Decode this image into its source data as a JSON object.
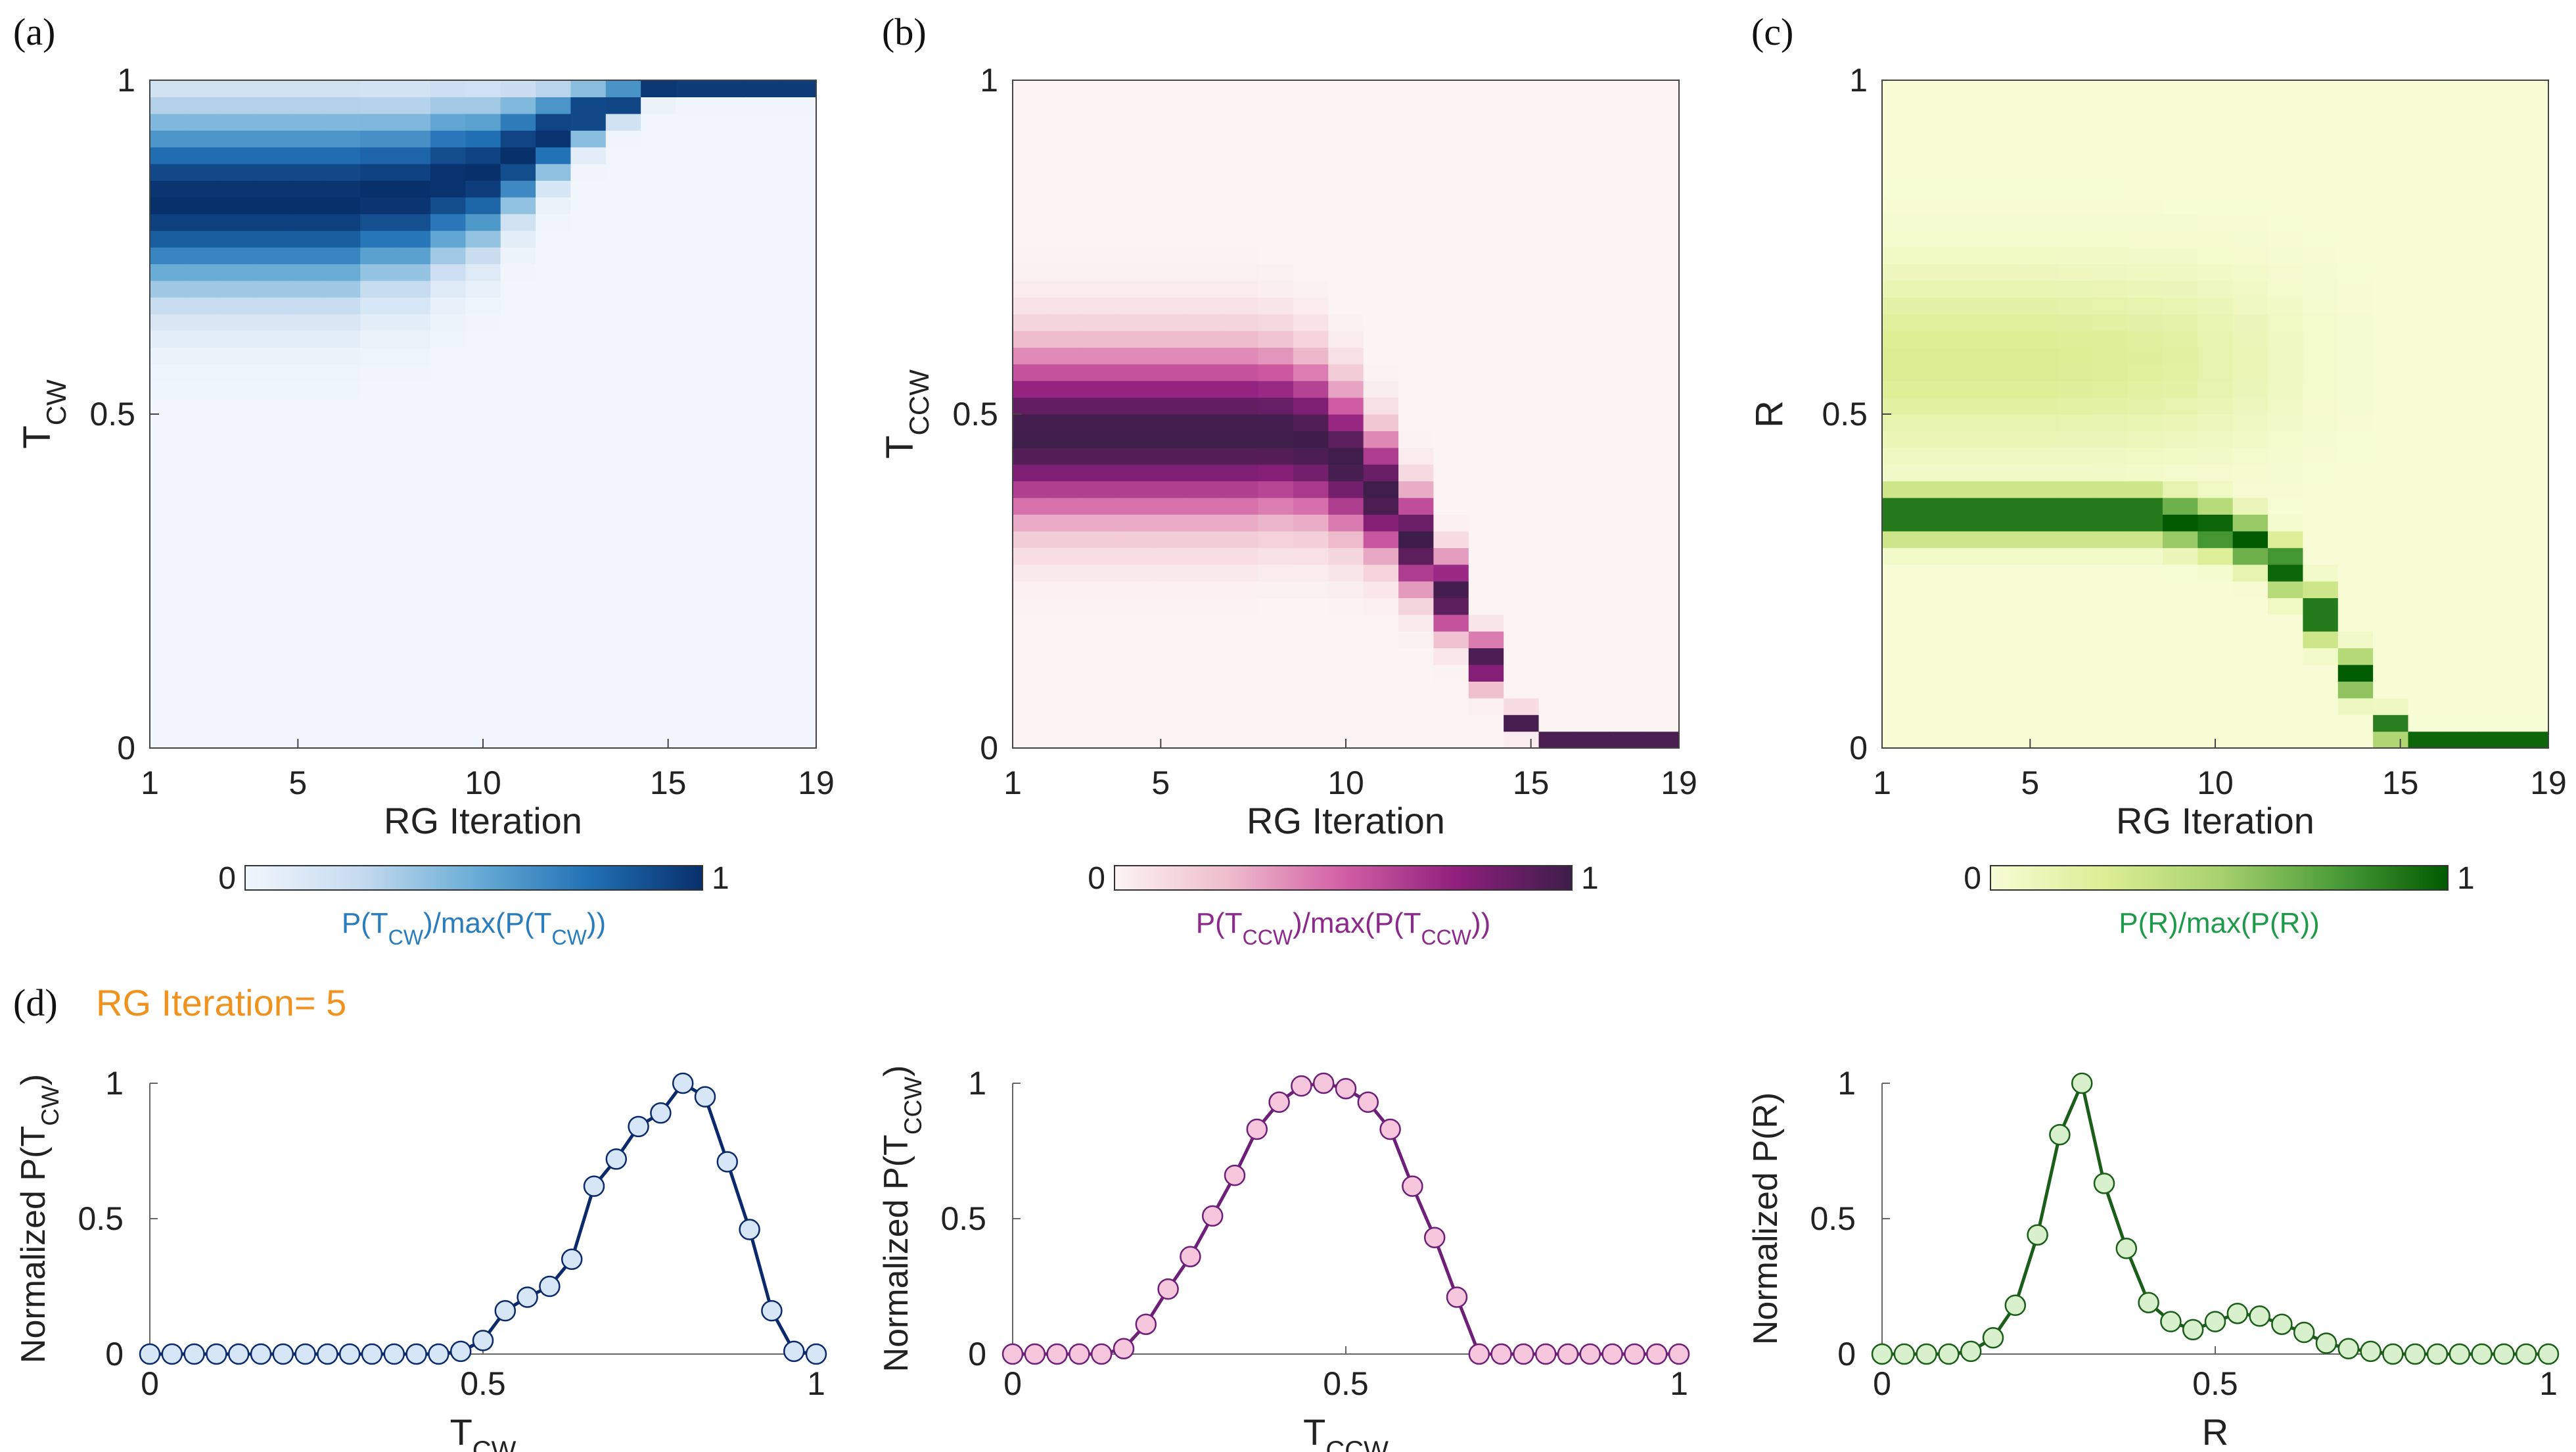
{
  "figure": {
    "panel_labels": [
      "(a)",
      "(b)",
      "(c)",
      "(d)"
    ],
    "d_annotation": "RG Iteration= 5",
    "d_annotation_color": "#f0921e"
  },
  "chart_data": [
    {
      "type": "heatmap",
      "panel": "(a)",
      "xlabel": "RG Iteration",
      "ylabel_main": "T",
      "ylabel_sub": "CW",
      "xticks": [
        "1",
        "5",
        "10",
        "15",
        "19"
      ],
      "yticks": [
        "0",
        "0.5",
        "1"
      ],
      "x_range": [
        1,
        19
      ],
      "ylim": [
        0,
        1
      ],
      "n_bins_y": 40,
      "colorbar": {
        "min_label": "0",
        "max_label": "1",
        "label": "P(T_CW)/max(P(T_CW))",
        "label_color": "#2a7dbd",
        "colors": [
          "#f1f6fc",
          "#c6dbef",
          "#6aaed6",
          "#2171b5",
          "#08306b"
        ]
      },
      "peak_center": [
        0.82,
        0.82,
        0.82,
        0.82,
        0.82,
        0.82,
        0.83,
        0.83,
        0.85,
        0.86,
        0.89,
        0.92,
        0.95,
        0.97,
        0.99,
        0.99,
        0.99,
        0.99,
        0.99
      ],
      "peak_width": [
        0.13,
        0.13,
        0.13,
        0.13,
        0.13,
        0.13,
        0.12,
        0.12,
        0.11,
        0.1,
        0.08,
        0.06,
        0.04,
        0.025,
        0.015,
        0.012,
        0.012,
        0.012,
        0.012
      ]
    },
    {
      "type": "heatmap",
      "panel": "(b)",
      "xlabel": "RG Iteration",
      "ylabel_main": "T",
      "ylabel_sub": "CCW",
      "xticks": [
        "1",
        "5",
        "10",
        "15",
        "19"
      ],
      "yticks": [
        "0",
        "0.5",
        "1"
      ],
      "x_range": [
        1,
        19
      ],
      "ylim": [
        0,
        1
      ],
      "n_bins_y": 40,
      "colorbar": {
        "min_label": "0",
        "max_label": "1",
        "label": "P(T_CCW)/max(P(T_CCW))",
        "label_color": "#8b2a8b",
        "colors": [
          "#fcf4f4",
          "#eebccc",
          "#d25fa4",
          "#8e1f7c",
          "#3d1e4a"
        ]
      },
      "peak_center": [
        0.47,
        0.47,
        0.47,
        0.47,
        0.47,
        0.47,
        0.47,
        0.47,
        0.46,
        0.43,
        0.38,
        0.31,
        0.23,
        0.13,
        0.04,
        0.01,
        0.01,
        0.01,
        0.01
      ],
      "peak_width": [
        0.12,
        0.12,
        0.12,
        0.12,
        0.12,
        0.12,
        0.12,
        0.115,
        0.11,
        0.1,
        0.085,
        0.07,
        0.055,
        0.035,
        0.015,
        0.012,
        0.012,
        0.012,
        0.012
      ]
    },
    {
      "type": "heatmap",
      "panel": "(c)",
      "xlabel": "RG Iteration",
      "ylabel_main": "R",
      "ylabel_sub": "",
      "xticks": [
        "1",
        "5",
        "10",
        "15",
        "19"
      ],
      "yticks": [
        "0",
        "0.5",
        "1"
      ],
      "x_range": [
        1,
        19
      ],
      "ylim": [
        0,
        1
      ],
      "n_bins_y": 40,
      "colorbar": {
        "min_label": "0",
        "max_label": "1",
        "label": "P(R)/max(P(R))",
        "label_color": "#1f9a4a",
        "colors": [
          "#f7fcd5",
          "#dcee94",
          "#a8d26e",
          "#4d9e3a",
          "#005a00"
        ]
      },
      "peak_center": [
        0.35,
        0.35,
        0.35,
        0.35,
        0.35,
        0.35,
        0.35,
        0.35,
        0.34,
        0.33,
        0.31,
        0.27,
        0.2,
        0.11,
        0.03,
        0.01,
        0.01,
        0.01,
        0.01
      ],
      "peak_width": [
        0.035,
        0.035,
        0.035,
        0.035,
        0.035,
        0.035,
        0.035,
        0.035,
        0.035,
        0.035,
        0.035,
        0.035,
        0.035,
        0.03,
        0.02,
        0.012,
        0.012,
        0.012,
        0.012
      ],
      "broad_center": 0.58,
      "broad_width": 0.13,
      "broad_amp": [
        0.26,
        0.26,
        0.26,
        0.26,
        0.26,
        0.25,
        0.24,
        0.22,
        0.2,
        0.16,
        0.12,
        0.08,
        0.04,
        0.02,
        0.0,
        0.0,
        0.0,
        0.0,
        0.0
      ]
    },
    {
      "type": "line",
      "panel": "(d) left",
      "xlabel_main": "T",
      "xlabel_sub": "CW",
      "ylabel_main": "Normalized P(T",
      "ylabel_sub": "CW",
      "ylabel_end": ")",
      "xticks": [
        "0",
        "0.5",
        "1"
      ],
      "yticks": [
        "0",
        "0.5",
        "1"
      ],
      "xlim": [
        0,
        1
      ],
      "ylim": [
        0,
        1
      ],
      "line_color": "#0b2a6b",
      "marker_color": "#d6e6f7",
      "x": [
        0.0,
        0.0333,
        0.0667,
        0.1,
        0.1333,
        0.1667,
        0.2,
        0.2333,
        0.2667,
        0.3,
        0.3333,
        0.3667,
        0.4,
        0.4333,
        0.4667,
        0.5,
        0.5333,
        0.5667,
        0.6,
        0.6333,
        0.6667,
        0.7,
        0.7333,
        0.7667,
        0.8,
        0.8333,
        0.8667,
        0.9,
        0.9333,
        0.9667,
        1.0
      ],
      "y": [
        0,
        0,
        0,
        0,
        0,
        0,
        0,
        0,
        0,
        0,
        0,
        0,
        0,
        0,
        0.01,
        0.05,
        0.16,
        0.21,
        0.25,
        0.35,
        0.62,
        0.72,
        0.84,
        0.89,
        1.0,
        0.95,
        0.71,
        0.46,
        0.16,
        0.01,
        0
      ]
    },
    {
      "type": "line",
      "panel": "(d) middle",
      "xlabel_main": "T",
      "xlabel_sub": "CCW",
      "ylabel_main": "Normalized P(T",
      "ylabel_sub": "CCW",
      "ylabel_end": ")",
      "xticks": [
        "0",
        "0.5",
        "1"
      ],
      "yticks": [
        "0",
        "0.5",
        "1"
      ],
      "xlim": [
        0,
        1
      ],
      "ylim": [
        0,
        1
      ],
      "line_color": "#6e1f78",
      "marker_color": "#f5c6dc",
      "x": [
        0.0,
        0.0333,
        0.0667,
        0.1,
        0.1333,
        0.1667,
        0.2,
        0.2333,
        0.2667,
        0.3,
        0.3333,
        0.3667,
        0.4,
        0.4333,
        0.4667,
        0.5,
        0.5333,
        0.5667,
        0.6,
        0.6333,
        0.6667,
        0.7,
        0.7333,
        0.7667,
        0.8,
        0.8333,
        0.8667,
        0.9,
        0.9333,
        0.9667,
        1.0
      ],
      "y": [
        0,
        0,
        0,
        0,
        0,
        0.02,
        0.11,
        0.24,
        0.36,
        0.51,
        0.66,
        0.83,
        0.93,
        0.99,
        1.0,
        0.98,
        0.93,
        0.83,
        0.62,
        0.43,
        0.21,
        0,
        0,
        0,
        0,
        0,
        0,
        0,
        0,
        0,
        0
      ]
    },
    {
      "type": "line",
      "panel": "(d) right",
      "xlabel_main": "R",
      "xlabel_sub": "",
      "ylabel_main": "Normalized P(R)",
      "ylabel_sub": "",
      "ylabel_end": "",
      "xticks": [
        "0",
        "0.5",
        "1"
      ],
      "yticks": [
        "0",
        "0.5",
        "1"
      ],
      "xlim": [
        0,
        1
      ],
      "ylim": [
        0,
        1
      ],
      "line_color": "#1a5e1a",
      "marker_color": "#d8f0cc",
      "x": [
        0.0,
        0.0333,
        0.0667,
        0.1,
        0.1333,
        0.1667,
        0.2,
        0.2333,
        0.2667,
        0.3,
        0.3333,
        0.3667,
        0.4,
        0.4333,
        0.4667,
        0.5,
        0.5333,
        0.5667,
        0.6,
        0.6333,
        0.6667,
        0.7,
        0.7333,
        0.7667,
        0.8,
        0.8333,
        0.8667,
        0.9,
        0.9333,
        0.9667,
        1.0
      ],
      "y": [
        0,
        0,
        0,
        0,
        0.01,
        0.06,
        0.18,
        0.44,
        0.81,
        1.0,
        0.63,
        0.39,
        0.19,
        0.12,
        0.09,
        0.12,
        0.15,
        0.14,
        0.11,
        0.08,
        0.04,
        0.02,
        0.01,
        0,
        0,
        0,
        0,
        0,
        0,
        0,
        0
      ]
    }
  ]
}
